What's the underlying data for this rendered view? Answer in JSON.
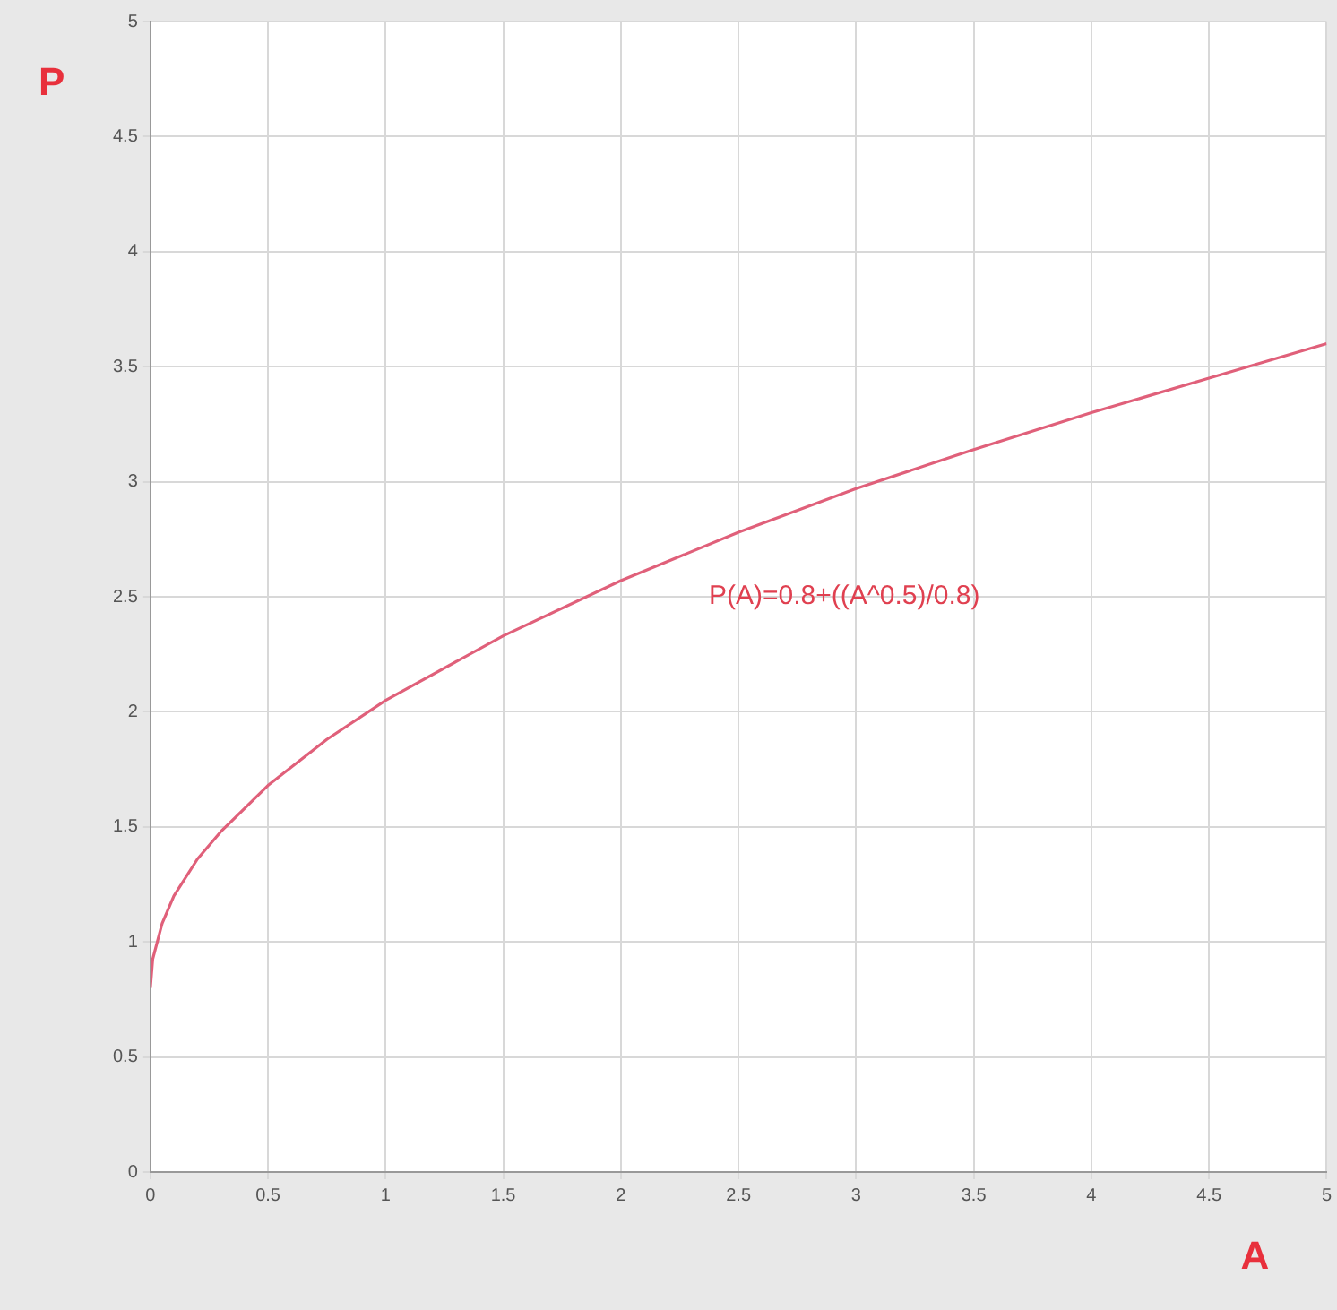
{
  "chart_data": {
    "type": "line",
    "xlabel": "A",
    "ylabel": "P",
    "x": [
      0,
      0.01,
      0.05,
      0.1,
      0.2,
      0.3,
      0.5,
      0.75,
      1,
      1.5,
      2,
      2.5,
      3,
      3.5,
      4,
      4.5,
      5
    ],
    "series": [
      {
        "color": "#e0607a",
        "values": [
          0.8,
          0.925,
          1.08,
          1.2,
          1.36,
          1.48,
          1.68,
          1.88,
          2.05,
          2.33,
          2.57,
          2.78,
          2.97,
          3.14,
          3.3,
          3.45,
          3.6
        ]
      }
    ],
    "xlim": [
      0,
      5
    ],
    "xticks": [
      0,
      0.5,
      1,
      1.5,
      2,
      2.5,
      3,
      3.5,
      4,
      4.5,
      5
    ],
    "ylim": [
      0,
      5
    ],
    "yticks": [
      0,
      0.5,
      1,
      1.5,
      2,
      2.5,
      3,
      3.5,
      4,
      4.5,
      5
    ],
    "annotations": [
      "P(A)=0.8+((A^0.5)/0.8)"
    ],
    "grid": true,
    "marker": "none",
    "line_style": "solid",
    "legend": false
  }
}
